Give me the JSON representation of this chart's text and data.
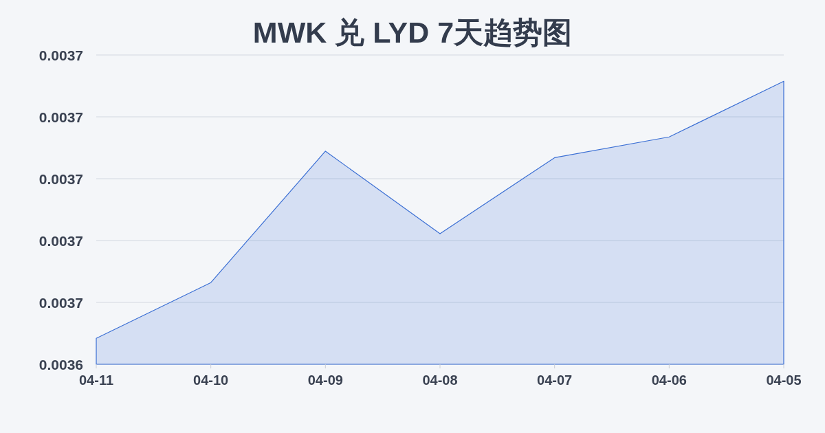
{
  "chart_data": {
    "type": "area",
    "title": "MWK 兑 LYD 7天趋势图",
    "categories": [
      "04-11",
      "04-10",
      "04-09",
      "04-08",
      "04-07",
      "04-06",
      "04-05"
    ],
    "values": [
      0.0036484,
      0.0036664,
      0.0037089,
      0.0036822,
      0.0037068,
      0.0037135,
      0.0037315
    ],
    "color": "#3b6fd4",
    "ylim": [
      0.00364,
      0.00374
    ],
    "yticks": [
      {
        "value": 0.00364,
        "label": "0.0036"
      },
      {
        "value": 0.00366,
        "label": "0.0037"
      },
      {
        "value": 0.00368,
        "label": "0.0037"
      },
      {
        "value": 0.0037,
        "label": "0.0037"
      },
      {
        "value": 0.00372,
        "label": "0.0037"
      },
      {
        "value": 0.00374,
        "label": "0.0037"
      }
    ],
    "grid": "y"
  }
}
